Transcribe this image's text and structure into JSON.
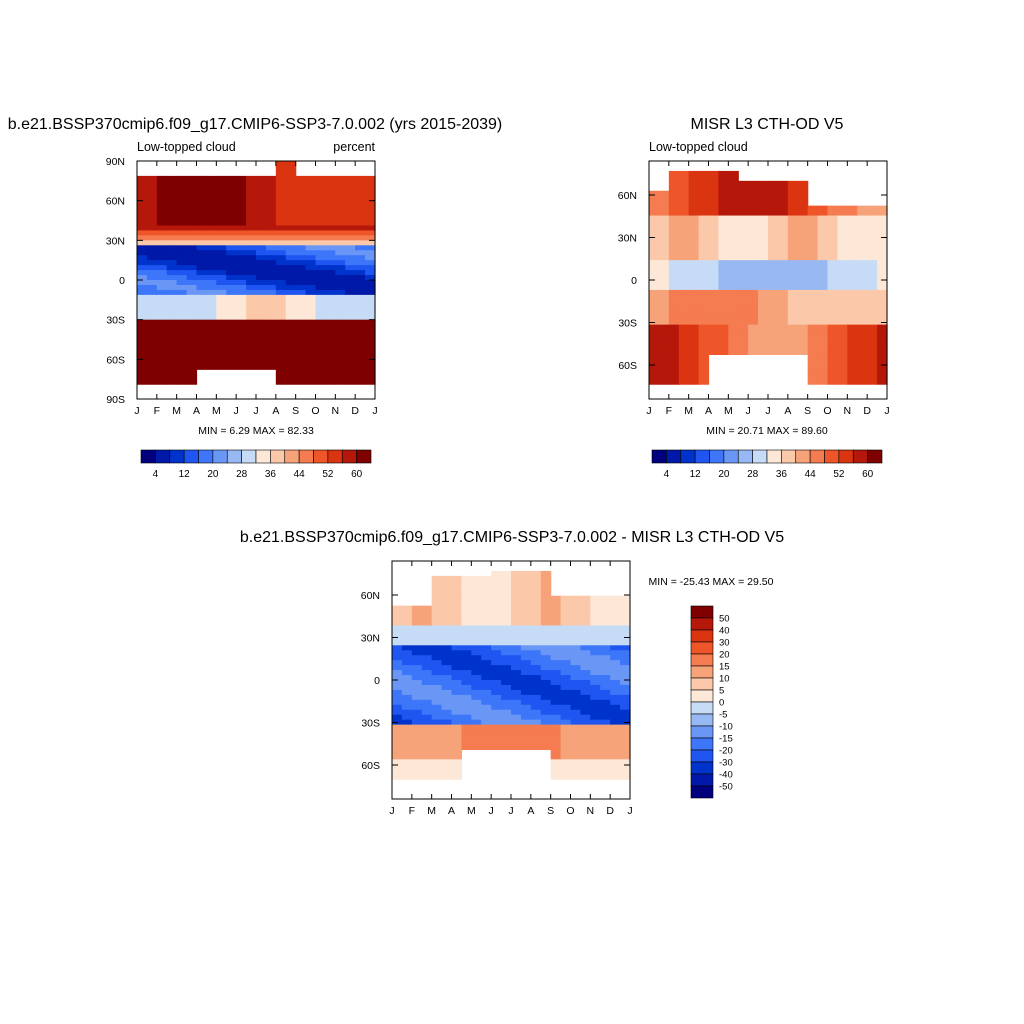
{
  "chart_data": [
    {
      "type": "heatmap",
      "title": "b.e21.BSSP370cmip6.f09_g17.CMIP6-SSP3-7.0.002 (yrs 2015-2039)",
      "subtitle_left": "Low-topped cloud",
      "subtitle_right": "percent",
      "stats": "MIN =   6.29 MAX =  82.33",
      "x_ticks": [
        "J",
        "F",
        "M",
        "A",
        "M",
        "J",
        "J",
        "A",
        "S",
        "O",
        "N",
        "D",
        "J"
      ],
      "y_ticks": [
        "90N",
        "60N",
        "30N",
        "0",
        "30S",
        "60S",
        "90S"
      ],
      "y_values": [
        90,
        60,
        30,
        0,
        -30,
        -60,
        -90
      ],
      "ylim": [
        -90,
        90
      ],
      "colorbar": {
        "orientation": "horizontal",
        "labels": [
          "4",
          "12",
          "20",
          "28",
          "36",
          "44",
          "52",
          "60"
        ],
        "levels": [
          4,
          8,
          12,
          16,
          20,
          24,
          28,
          32,
          36,
          40,
          44,
          48,
          52,
          56,
          60,
          64
        ]
      },
      "palette": "blue-white-red",
      "field": "model",
      "vmin": 6.29,
      "vmax": 82.33
    },
    {
      "type": "heatmap",
      "title": "MISR L3 CTH-OD V5",
      "subtitle_left": "Low-topped cloud",
      "subtitle_right": "",
      "stats": "MIN =  20.71 MAX =  89.60",
      "x_ticks": [
        "J",
        "F",
        "M",
        "A",
        "M",
        "J",
        "J",
        "A",
        "S",
        "O",
        "N",
        "D",
        "J"
      ],
      "y_ticks": [
        "60N",
        "30N",
        "0",
        "30S",
        "60S"
      ],
      "y_values": [
        60,
        30,
        0,
        -30,
        -60
      ],
      "ylim": [
        -84,
        84
      ],
      "colorbar": {
        "orientation": "horizontal",
        "labels": [
          "4",
          "12",
          "20",
          "28",
          "36",
          "44",
          "52",
          "60"
        ],
        "levels": [
          4,
          8,
          12,
          16,
          20,
          24,
          28,
          32,
          36,
          40,
          44,
          48,
          52,
          56,
          60,
          64
        ]
      },
      "palette": "blue-white-red",
      "field": "obs",
      "vmin": 20.71,
      "vmax": 89.6
    },
    {
      "type": "heatmap",
      "title": "b.e21.BSSP370cmip6.f09_g17.CMIP6-SSP3-7.0.002 - MISR L3 CTH-OD V5",
      "subtitle_left": "",
      "subtitle_right": "",
      "stats": "MIN = -25.43 MAX =  29.50",
      "x_ticks": [
        "J",
        "F",
        "M",
        "A",
        "M",
        "J",
        "J",
        "A",
        "S",
        "O",
        "N",
        "D",
        "J"
      ],
      "y_ticks": [
        "60N",
        "30N",
        "0",
        "30S",
        "60S"
      ],
      "y_values": [
        60,
        30,
        0,
        -30,
        -60
      ],
      "ylim": [
        -84,
        84
      ],
      "colorbar": {
        "orientation": "vertical",
        "labels": [
          "50",
          "40",
          "30",
          "20",
          "15",
          "10",
          "5",
          "0",
          "-5",
          "-10",
          "-15",
          "-20",
          "-30",
          "-40",
          "-50"
        ],
        "levels": [
          -50,
          -40,
          -30,
          -20,
          -15,
          -10,
          -5,
          0,
          5,
          10,
          15,
          20,
          30,
          40,
          50
        ]
      },
      "palette": "blue-white-red",
      "field": "diff",
      "vmin": -25.43,
      "vmax": 29.5
    }
  ],
  "colors": [
    "#00007f",
    "#0019a8",
    "#0033cc",
    "#1f55f0",
    "#3d76f8",
    "#6a97f5",
    "#98b8f3",
    "#c6dbf6",
    "#fde8d8",
    "#fbc9aa",
    "#f7a37a",
    "#f57b50",
    "#ee5528",
    "#da3410",
    "#b5180a",
    "#7f0000"
  ]
}
